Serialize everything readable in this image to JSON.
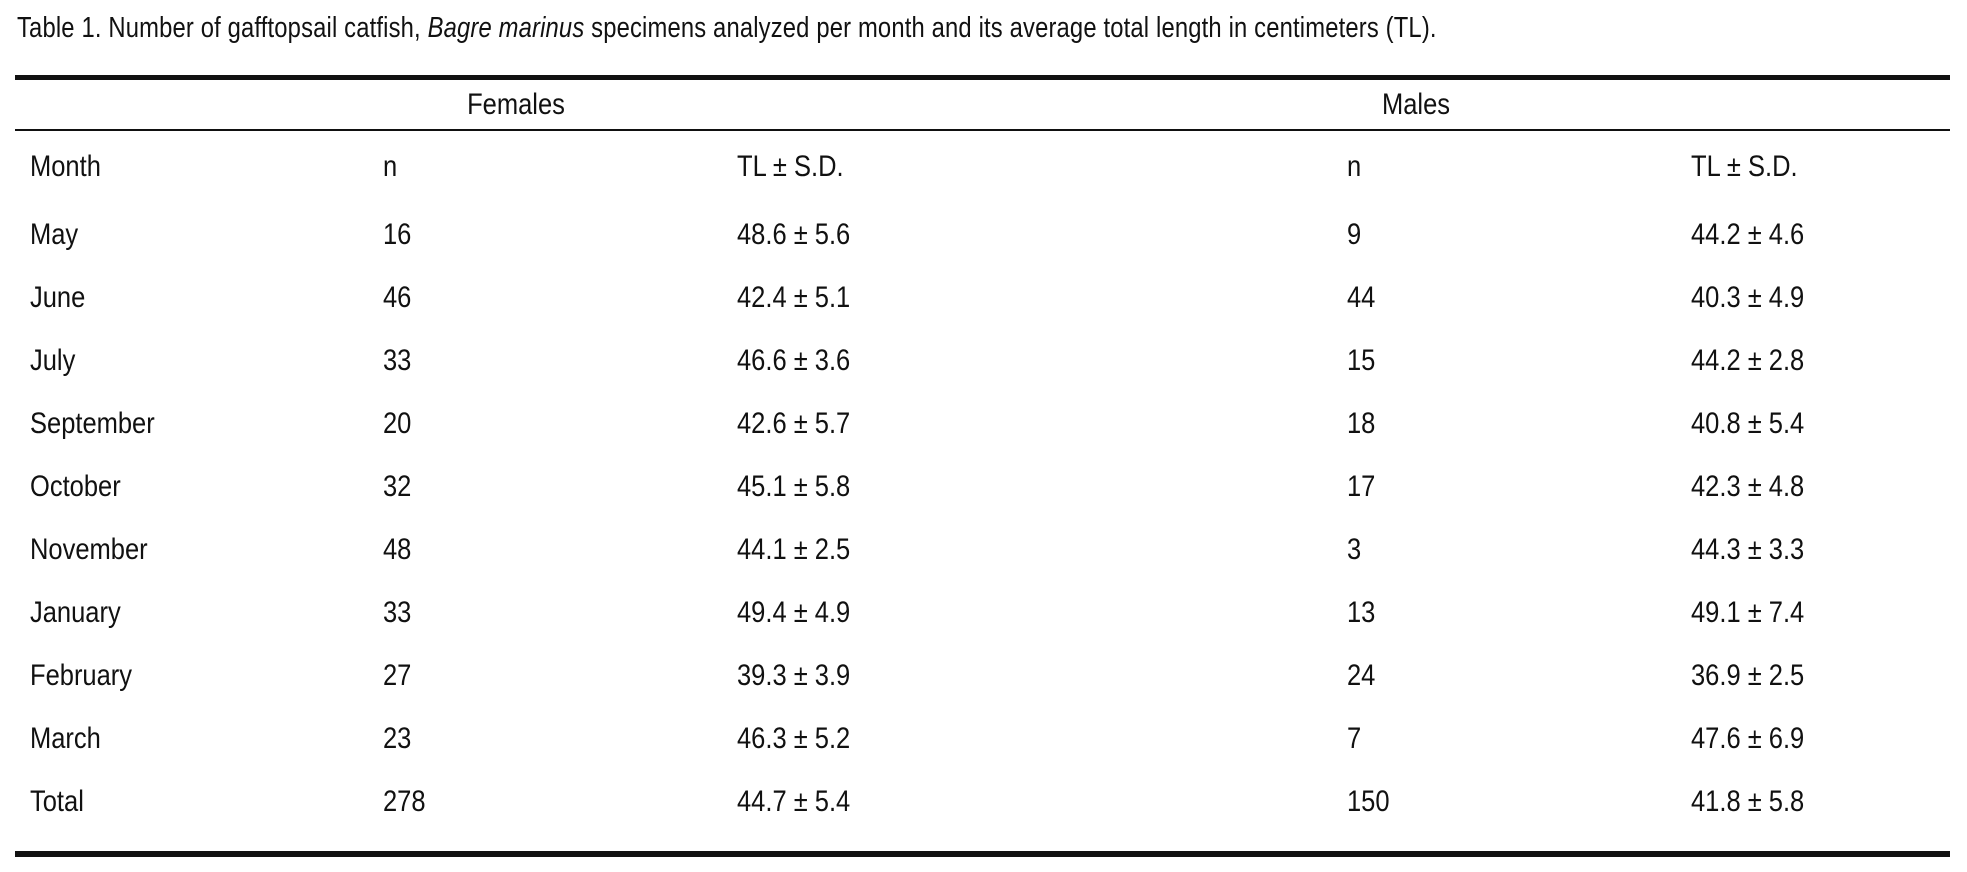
{
  "colors": {
    "ink": "#111111",
    "background": "#ffffff"
  },
  "table": {
    "title": {
      "prefix": "Table 1. Number of gafftopsail catfish, ",
      "species": "Bagre marinus",
      "suffix": " specimens analyzed per month and its average total length in centimeters (TL)."
    },
    "groups": {
      "females": "Females",
      "males": "Males"
    },
    "columns": {
      "month": "Month",
      "female_n": "n",
      "female_tl": "TL ± S.D.",
      "male_n": "n",
      "male_tl": "TL ± S.D."
    },
    "rows": [
      {
        "month": "May",
        "f_n": "16",
        "f_tl": "48.6 ± 5.6",
        "m_n": "9",
        "m_tl": "44.2 ± 4.6"
      },
      {
        "month": "June",
        "f_n": "46",
        "f_tl": "42.4 ± 5.1",
        "m_n": "44",
        "m_tl": "40.3 ± 4.9"
      },
      {
        "month": "July",
        "f_n": "33",
        "f_tl": "46.6 ± 3.6",
        "m_n": "15",
        "m_tl": "44.2 ± 2.8"
      },
      {
        "month": "September",
        "f_n": "20",
        "f_tl": "42.6 ± 5.7",
        "m_n": "18",
        "m_tl": "40.8 ± 5.4"
      },
      {
        "month": "October",
        "f_n": "32",
        "f_tl": "45.1 ± 5.8",
        "m_n": "17",
        "m_tl": "42.3 ± 4.8"
      },
      {
        "month": "November",
        "f_n": "48",
        "f_tl": "44.1 ± 2.5",
        "m_n": "3",
        "m_tl": "44.3 ± 3.3"
      },
      {
        "month": "January",
        "f_n": "33",
        "f_tl": "49.4 ± 4.9",
        "m_n": "13",
        "m_tl": "49.1 ± 7.4"
      },
      {
        "month": "February",
        "f_n": "27",
        "f_tl": "39.3 ± 3.9",
        "m_n": "24",
        "m_tl": "36.9 ± 2.5"
      },
      {
        "month": "March",
        "f_n": "23",
        "f_tl": "46.3 ± 5.2",
        "m_n": "7",
        "m_tl": "47.6 ± 6.9"
      },
      {
        "month": "Total",
        "f_n": "278",
        "f_tl": "44.7 ± 5.4",
        "m_n": "150",
        "m_tl": "41.8 ± 5.8"
      }
    ]
  }
}
